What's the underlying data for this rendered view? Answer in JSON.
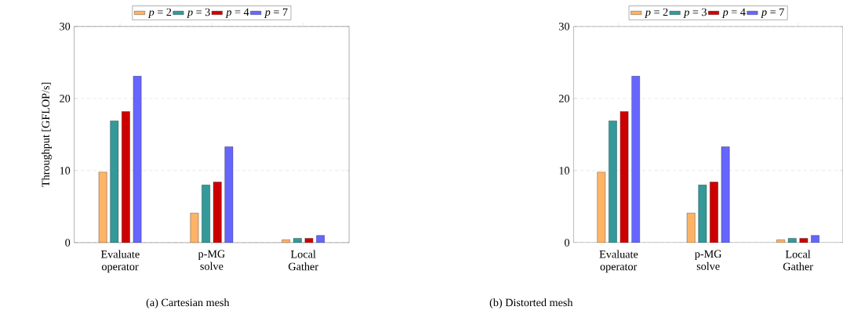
{
  "chart_data": [
    {
      "type": "bar",
      "title": "(a) Cartesian mesh",
      "ylabel": "Throughput [GFLOP/s]",
      "categories": [
        "Evaluate operator",
        "p-MG solve",
        "Local Gather"
      ],
      "ylim": [
        0,
        30
      ],
      "yticks": [
        0,
        10,
        20,
        30
      ],
      "grid": "y",
      "legend": "top",
      "series": [
        {
          "name": "*p* = 2",
          "color": "#ffb366",
          "values": [
            9.8,
            4.1,
            0.4
          ]
        },
        {
          "name": "*p* = 3",
          "color": "#339999",
          "values": [
            16.9,
            8.0,
            0.6
          ]
        },
        {
          "name": "*p* = 4",
          "color": "#cc0000",
          "values": [
            18.2,
            8.4,
            0.6
          ]
        },
        {
          "name": "*p* = 7",
          "color": "#6666ff",
          "values": [
            23.1,
            13.3,
            1.0
          ]
        }
      ]
    },
    {
      "type": "bar",
      "title": "(b) Distorted mesh",
      "categories": [
        "Evaluate operator",
        "p-MG solve",
        "Local Gather"
      ],
      "ylim": [
        0,
        30
      ],
      "yticks": [
        0,
        10,
        20,
        30
      ],
      "grid": "y",
      "legend": "top",
      "series": [
        {
          "name": "*p* = 2",
          "color": "#ffb366",
          "values": [
            9.8,
            4.1,
            0.4
          ]
        },
        {
          "name": "*p* = 3",
          "color": "#339999",
          "values": [
            16.9,
            8.0,
            0.6
          ]
        },
        {
          "name": "*p* = 4",
          "color": "#cc0000",
          "values": [
            18.2,
            8.4,
            0.6
          ]
        },
        {
          "name": "*p* = 7",
          "color": "#6666ff",
          "values": [
            23.1,
            13.3,
            1.0
          ]
        }
      ]
    }
  ]
}
